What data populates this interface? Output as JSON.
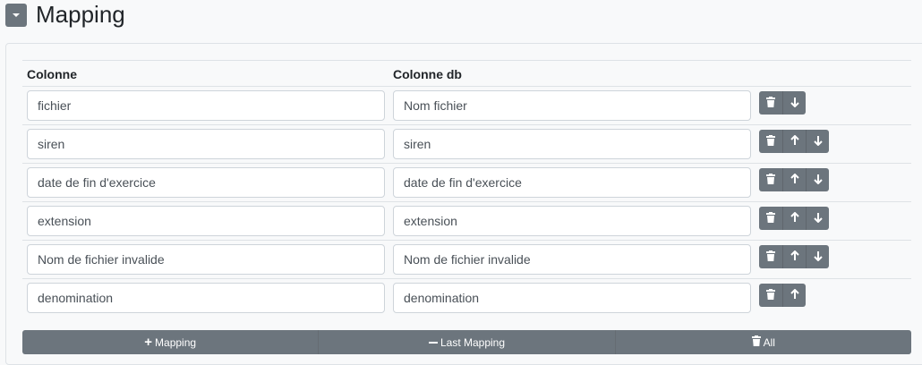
{
  "header": {
    "title": "Mapping",
    "toggle_icon": "caret-down-icon"
  },
  "table": {
    "columns": [
      "Colonne",
      "Colonne db"
    ],
    "rows": [
      {
        "colonne": "fichier",
        "colonne_db": "Nom fichier",
        "actions": [
          "delete",
          "down"
        ]
      },
      {
        "colonne": "siren",
        "colonne_db": "siren",
        "actions": [
          "delete",
          "up",
          "down"
        ]
      },
      {
        "colonne": "date de fin d'exercice",
        "colonne_db": "date de fin d'exercice",
        "actions": [
          "delete",
          "up",
          "down"
        ]
      },
      {
        "colonne": "extension",
        "colonne_db": "extension",
        "actions": [
          "delete",
          "up",
          "down"
        ]
      },
      {
        "colonne": "Nom de fichier invalide",
        "colonne_db": "Nom de fichier invalide",
        "actions": [
          "delete",
          "up",
          "down"
        ]
      },
      {
        "colonne": "denomination",
        "colonne_db": "denomination",
        "actions": [
          "delete",
          "up"
        ]
      }
    ]
  },
  "footer": {
    "add_label": "Mapping",
    "remove_last_label": "Last Mapping",
    "delete_all_label": "All"
  },
  "colors": {
    "button": "#6c757d",
    "background": "#f8f9fa"
  }
}
